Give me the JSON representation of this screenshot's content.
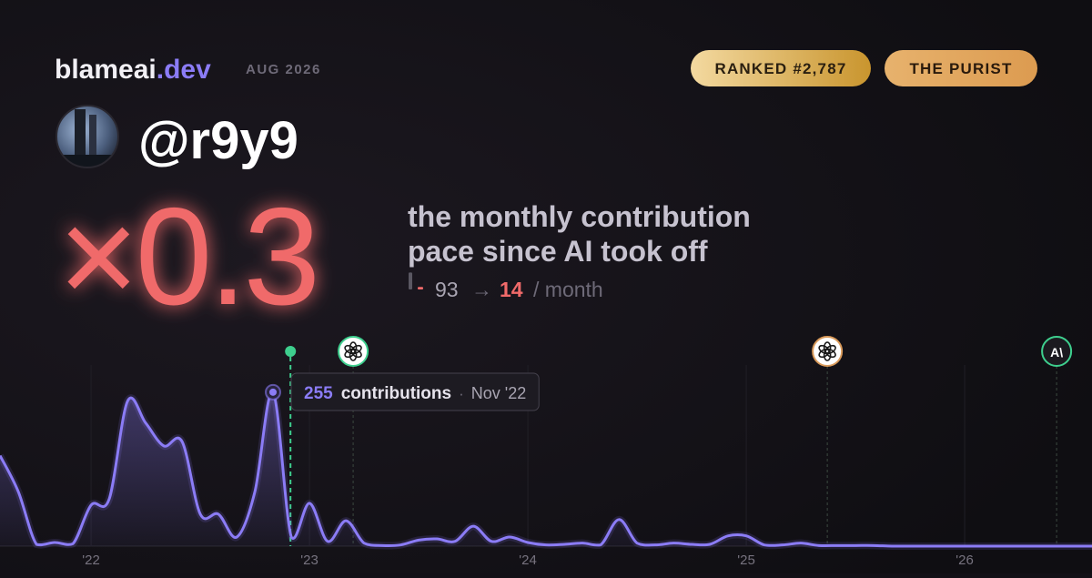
{
  "header": {
    "brand": "blameai",
    "brand_suffix": ".dev",
    "period": "AUG 2026",
    "badges": [
      "RANKED #2,787",
      "THE PURIST"
    ]
  },
  "profile": {
    "handle": "@r9y9"
  },
  "headline": {
    "multiplier": "×0.3",
    "lines": [
      "the monthly contribution",
      "pace since AI took off"
    ]
  },
  "stats": {
    "before": 93,
    "arrow": "→",
    "after": 14,
    "unit": "/ month",
    "before_color": "#5a5762",
    "after_color": "#f06a6a"
  },
  "chart": {
    "type": "line",
    "color": "#8b7cf6",
    "x": [
      2021.583,
      2021.667,
      2021.75,
      2021.833,
      2021.917,
      2022,
      2022.083,
      2022.167,
      2022.25,
      2022.333,
      2022.417,
      2022.5,
      2022.583,
      2022.667,
      2022.75,
      2022.833,
      2022.917,
      2023,
      2023.083,
      2023.167,
      2023.25,
      2023.333,
      2023.417,
      2023.5,
      2023.583,
      2023.667,
      2023.75,
      2023.833,
      2023.917,
      2024,
      2024.083,
      2024.167,
      2024.25,
      2024.333,
      2024.417,
      2024.5,
      2024.583,
      2024.667,
      2024.75,
      2024.833,
      2024.917,
      2025,
      2025.083,
      2025.167,
      2025.25,
      2025.333,
      2025.417,
      2025.5,
      2025.583,
      2025.667,
      2025.75,
      2025.833,
      2025.917,
      2026,
      2026.083,
      2026.167,
      2026.25,
      2026.333,
      2026.417,
      2026.5,
      2026.583
    ],
    "values": [
      150,
      90,
      3,
      6,
      4,
      68,
      78,
      240,
      204,
      166,
      173,
      53,
      53,
      15,
      90,
      255,
      15,
      71,
      8,
      42,
      5,
      1,
      2,
      10,
      12,
      8,
      33,
      8,
      15,
      6,
      2,
      3,
      5,
      2,
      44,
      5,
      2,
      5,
      3,
      3,
      17,
      17,
      2,
      2,
      5,
      1,
      1,
      1,
      1,
      0,
      0,
      0,
      0,
      0,
      0,
      0,
      0,
      0,
      0,
      0,
      0
    ],
    "xlim": [
      2021.583,
      2026.583
    ],
    "ylim": [
      0,
      300
    ],
    "xticks": [
      {
        "value": 2022,
        "label": "'22"
      },
      {
        "value": 2023,
        "label": "'23"
      },
      {
        "value": 2024,
        "label": "'24"
      },
      {
        "value": 2025,
        "label": "'25"
      },
      {
        "value": 2026,
        "label": "'26"
      }
    ],
    "grid": true,
    "tooltip": {
      "index": 15,
      "unit": "contributions",
      "separator": "·",
      "date": "Nov '22"
    },
    "events": [
      {
        "x": 2022.913,
        "style": "dot",
        "color": "#3ecf8e"
      },
      {
        "x": 2023.2,
        "style": "badge",
        "color": "#3ecf8e"
      },
      {
        "x": 2025.371,
        "style": "badge",
        "color": "#d99a5a"
      },
      {
        "x": 2026.421,
        "style": "badge",
        "color": "#3ecf8e",
        "label": "A\\"
      }
    ]
  }
}
